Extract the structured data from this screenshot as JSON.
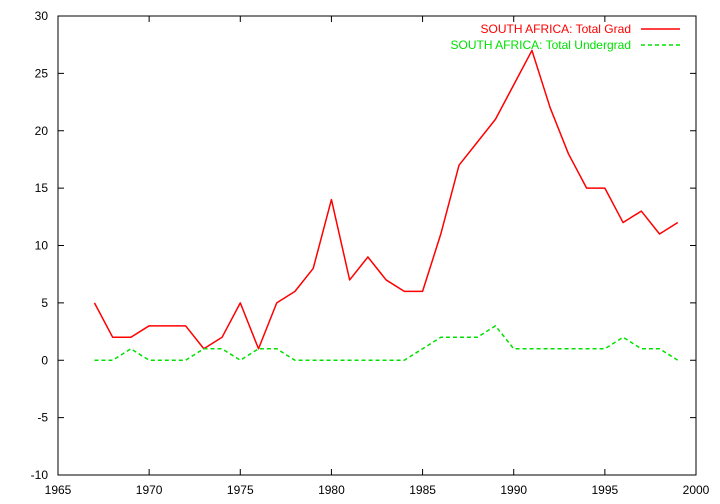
{
  "chart_data": {
    "type": "line",
    "title": "",
    "xlabel": "",
    "ylabel": "",
    "xlim": [
      1965,
      2000
    ],
    "ylim": [
      -10,
      30
    ],
    "xticks": [
      1965,
      1970,
      1975,
      1980,
      1985,
      1990,
      1995,
      2000
    ],
    "yticks": [
      -10,
      -5,
      0,
      5,
      10,
      15,
      20,
      25,
      30
    ],
    "grid": false,
    "legend_position": "top-right",
    "x": [
      1967,
      1968,
      1969,
      1970,
      1971,
      1972,
      1973,
      1974,
      1975,
      1976,
      1977,
      1978,
      1979,
      1980,
      1981,
      1982,
      1983,
      1984,
      1985,
      1986,
      1987,
      1988,
      1989,
      1990,
      1991,
      1992,
      1993,
      1994,
      1995,
      1996,
      1997,
      1998,
      1999
    ],
    "series": [
      {
        "name": "SOUTH AFRICA: Total Grad",
        "color": "#ff0000",
        "dash": "solid",
        "values": [
          5,
          2,
          2,
          3,
          3,
          3,
          1,
          2,
          5,
          1,
          5,
          6,
          8,
          14,
          7,
          9,
          7,
          6,
          6,
          11,
          17,
          19,
          21,
          24,
          27,
          22,
          18,
          15,
          15,
          12,
          13,
          11,
          12
        ]
      },
      {
        "name": "SOUTH AFRICA: Total Undergrad",
        "color": "#00e000",
        "dash": "dashed",
        "values": [
          0,
          0,
          1,
          0,
          0,
          0,
          1,
          1,
          0,
          1,
          1,
          0,
          0,
          0,
          0,
          0,
          0,
          0,
          1,
          2,
          2,
          2,
          3,
          1,
          1,
          1,
          1,
          1,
          1,
          2,
          1,
          1,
          0
        ]
      }
    ]
  }
}
